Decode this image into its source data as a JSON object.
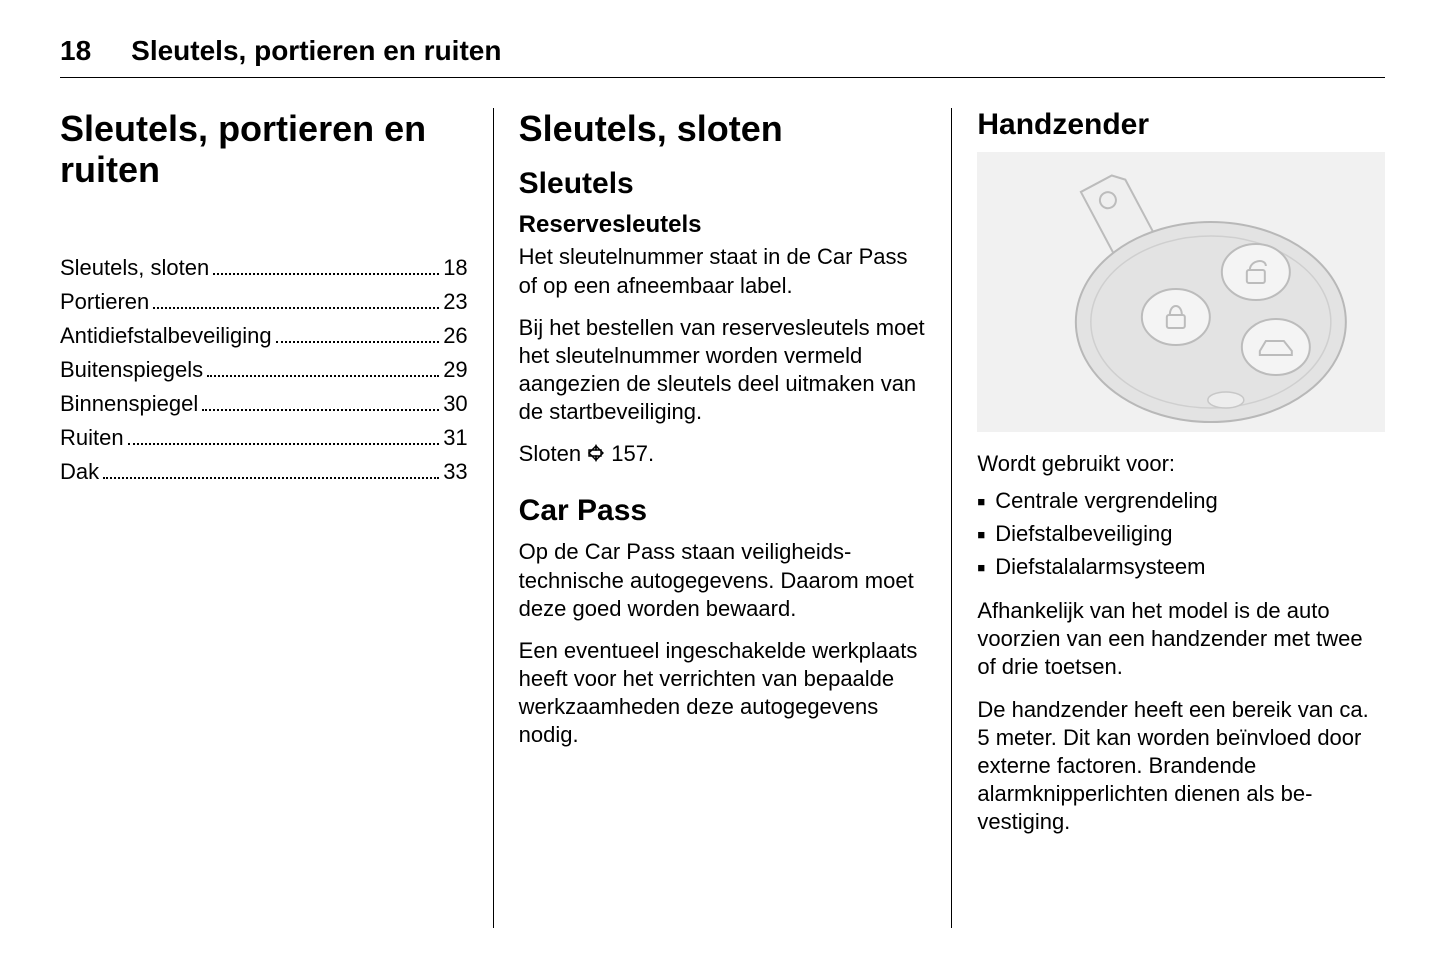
{
  "page_number": "18",
  "header_title": "Sleutels, portieren en ruiten",
  "col1": {
    "title": "Sleutels, portieren en ruiten",
    "toc": [
      {
        "label": "Sleutels, sloten",
        "page": "18"
      },
      {
        "label": "Portieren",
        "page": "23"
      },
      {
        "label": "Antidiefstalbeveiliging",
        "page": "26"
      },
      {
        "label": "Buitenspiegels",
        "page": "29"
      },
      {
        "label": "Binnenspiegel",
        "page": "30"
      },
      {
        "label": "Ruiten",
        "page": "31"
      },
      {
        "label": "Dak",
        "page": "33"
      }
    ]
  },
  "col2": {
    "h1": "Sleutels, sloten",
    "h2_keys": "Sleutels",
    "h3_spare": "Reservesleutels",
    "p_spare1": "Het sleutelnummer staat in de Car Pass of op een afneembaar label.",
    "p_spare2": "Bij het bestellen van reservesleutels moet het sleutelnummer worden ver­meld aangezien de sleutels deel uit­maken van de startbeveiliging.",
    "p_locks_ref_pre": "Sloten ",
    "p_locks_ref_num": " 157.",
    "h2_carpass": "Car Pass",
    "p_cp1": "Op de Car Pass staan veiligheids­technische autogegevens. Daarom moet deze goed worden bewaard.",
    "p_cp2": "Een eventueel ingeschakelde werk­plaats heeft voor het verrichten van bepaalde werkzaamheden deze au­togegevens nodig."
  },
  "col3": {
    "h2": "Handzender",
    "p_used_for": "Wordt gebruikt voor:",
    "bullets": [
      "Centrale vergrendeling",
      "Diefstalbeveiliging",
      "Diefstalalarmsysteem"
    ],
    "p_model": "Afhankelijk van het model is de auto voorzien van een handzender met twee of drie toetsen.",
    "p_range": "De handzender heeft een bereik van ca. 5 meter. Dit kan worden beïnvloed door externe factoren. Brandende alarmknipperlichten dienen als be­vestiging."
  },
  "key_illustration": {
    "bg": "#f1f1f1",
    "fob_fill": "#e3e3e3",
    "fob_stroke": "#b8b8b8",
    "button_fill": "#f4f4f4",
    "button_stroke": "#bcbcbc",
    "key_fill": "#efefef",
    "key_stroke": "#bcbcbc"
  }
}
